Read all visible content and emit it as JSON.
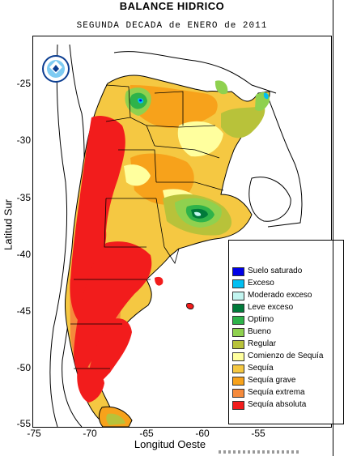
{
  "header": {
    "title": "BALANCE HIDRICO",
    "subtitle": "SEGUNDA DECADA de ENERO de 2011"
  },
  "axes": {
    "ylabel": "Latitud Sur",
    "xlabel": "Longitud Oeste",
    "yticks": [
      "-25",
      "-30",
      "-35",
      "-40",
      "-45",
      "-50",
      "-55"
    ],
    "xticks": [
      "-75",
      "-70",
      "-65",
      "-60",
      "-55"
    ]
  },
  "map": {
    "extent": {
      "lon": [
        -75,
        -51
      ],
      "lat": [
        -56,
        -21
      ]
    },
    "logo": "smn-logo"
  },
  "legend": {
    "items": [
      {
        "label": "Suelo saturado",
        "color": "#0000e6"
      },
      {
        "label": "Exceso",
        "color": "#00bff2"
      },
      {
        "label": "Moderado exceso",
        "color": "#c2f5f0"
      },
      {
        "label": "Leve exceso",
        "color": "#007a3a"
      },
      {
        "label": "Optimo",
        "color": "#2eb34a"
      },
      {
        "label": "Bueno",
        "color": "#8fd14f"
      },
      {
        "label": "Regular",
        "color": "#b8c23a"
      },
      {
        "label": "Comienzo de Sequía",
        "color": "#ffff9e"
      },
      {
        "label": "Sequía",
        "color": "#f5c842"
      },
      {
        "label": "Sequía grave",
        "color": "#f7a21b"
      },
      {
        "label": "Sequía extrema",
        "color": "#f58a3c"
      },
      {
        "label": "Sequía absoluta",
        "color": "#f21c1c"
      }
    ]
  }
}
